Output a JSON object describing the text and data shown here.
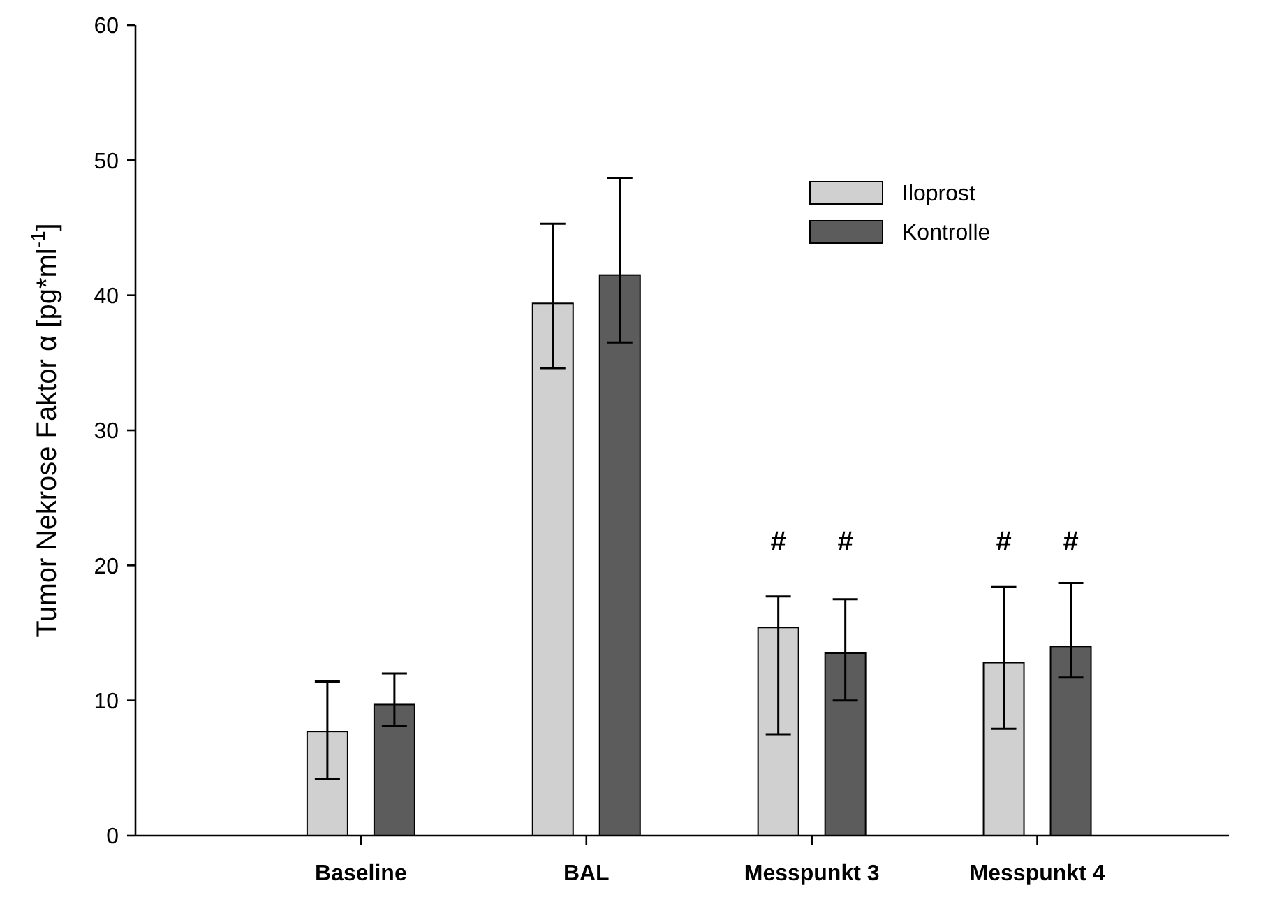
{
  "chart_data": {
    "type": "bar",
    "ylabel": "Tumor Nekrose Faktor α [pg*ml$^{-1}$]",
    "categories": [
      "Baseline",
      "BAL",
      "Messpunkt 3",
      "Messpunkt 4"
    ],
    "series": [
      {
        "name": "Iloprost",
        "color": "#d0d0d0",
        "values": [
          7.7,
          39.4,
          15.4,
          12.8
        ],
        "errors": [
          [
            4.2,
            11.4
          ],
          [
            34.6,
            45.3
          ],
          [
            7.5,
            17.7
          ],
          [
            7.9,
            18.4
          ]
        ]
      },
      {
        "name": "Kontrolle",
        "color": "#5c5c5c",
        "values": [
          9.7,
          41.5,
          13.5,
          14.0
        ],
        "errors": [
          [
            8.1,
            12.0
          ],
          [
            36.5,
            48.7
          ],
          [
            10.0,
            17.5
          ],
          [
            11.7,
            18.7
          ]
        ]
      }
    ],
    "annotations": [
      "#",
      "#",
      "#",
      "#"
    ],
    "ylim": [
      0,
      60
    ],
    "yticks": [
      0,
      10,
      20,
      30,
      40,
      50,
      60
    ],
    "grid": false,
    "legend": "top right"
  }
}
